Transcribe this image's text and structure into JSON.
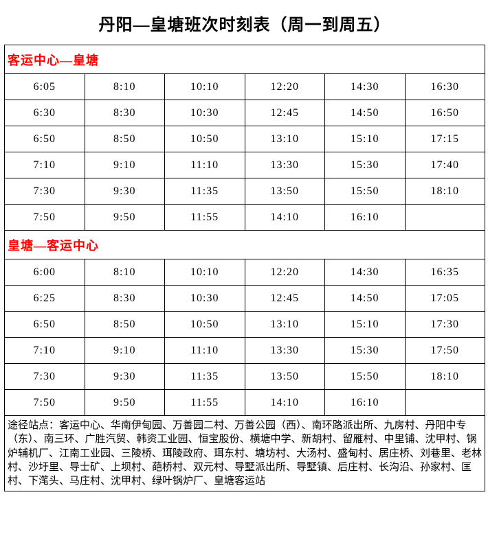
{
  "title": "丹阳—皇塘班次时刻表（周一到周五）",
  "colors": {
    "section_header": "#ff0000",
    "text": "#000000",
    "border": "#000000",
    "background": "#ffffff"
  },
  "layout": {
    "columns": 6,
    "column_width_pct": 16.666
  },
  "sections": [
    {
      "header": "客运中心—皇塘",
      "rows": [
        [
          "6:05",
          "8:10",
          "10:10",
          "12:20",
          "14:30",
          "16:30"
        ],
        [
          "6:30",
          "8:30",
          "10:30",
          "12:45",
          "14:50",
          "16:50"
        ],
        [
          "6:50",
          "8:50",
          "10:50",
          "13:10",
          "15:10",
          "17:15"
        ],
        [
          "7:10",
          "9:10",
          "11:10",
          "13:30",
          "15:30",
          "17:40"
        ],
        [
          "7:30",
          "9:30",
          "11:35",
          "13:50",
          "15:50",
          "18:10"
        ],
        [
          "7:50",
          "9:50",
          "11:55",
          "14:10",
          "16:10",
          ""
        ]
      ]
    },
    {
      "header": "皇塘—客运中心",
      "rows": [
        [
          "6:00",
          "8:10",
          "10:10",
          "12:20",
          "14:30",
          "16:35"
        ],
        [
          "6:25",
          "8:30",
          "10:30",
          "12:45",
          "14:50",
          "17:05"
        ],
        [
          "6:50",
          "8:50",
          "10:50",
          "13:10",
          "15:10",
          "17:30"
        ],
        [
          "7:10",
          "9:10",
          "11:10",
          "13:30",
          "15:30",
          "17:50"
        ],
        [
          "7:30",
          "9:30",
          "11:35",
          "13:50",
          "15:50",
          "18:10"
        ],
        [
          "7:50",
          "9:50",
          "11:55",
          "14:10",
          "16:10",
          ""
        ]
      ]
    }
  ],
  "footer": "途径站点：客运中心、华南伊甸园、万善园二村、万善公园（西）、南环路派出所、九房村、丹阳中专（东）、南三环、广胜汽贸、韩资工业园、恒宝股份、横塘中学、新胡村、留雁村、中里铺、沈甲村、锅炉辅机厂、江南工业园、三陵桥、珥陵政府、珥东村、塘坊村、大汤村、盛甸村、居庄桥、刘巷里、老林村、沙圩里、导士矿、上坝村、葩桥村、双元村、导墅派出所、导墅镇、后庄村、长沟沿、孙家村、匡村、下滗头、马庄村、沈甲村、绿叶锅炉厂、皇塘客运站"
}
